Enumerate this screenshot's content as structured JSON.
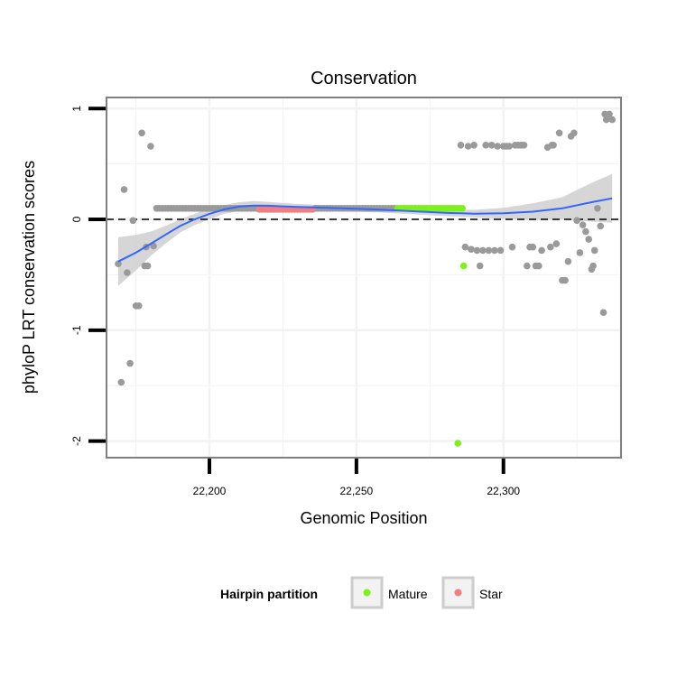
{
  "chart_data": {
    "type": "scatter",
    "title": "Conservation",
    "xlabel": "Genomic Position",
    "ylabel": "phyloP LRT conservation scores",
    "xlim": [
      22165,
      22340
    ],
    "ylim": [
      -2.15,
      1.1
    ],
    "x_ticks": [
      22200,
      22250,
      22300
    ],
    "x_tick_labels": [
      "22,200",
      "22,250",
      "22,300"
    ],
    "y_ticks": [
      -2,
      -1,
      0,
      1
    ],
    "y_tick_labels": [
      "-2",
      "-1",
      "0",
      "1"
    ],
    "reference_line": {
      "y": 0,
      "style": "dashed"
    },
    "legend": {
      "title": "Hairpin partition",
      "position": "bottom",
      "entries": [
        {
          "label": "Mature",
          "color": "#7cf11b"
        },
        {
          "label": "Star",
          "color": "#f08080"
        }
      ]
    },
    "colors": {
      "other": "#9a9a9a",
      "mature": "#7cf11b",
      "star": "#f08080",
      "smooth": "#3366ff",
      "ribbon": "#cfcfcf",
      "panel_border": "#7f7f7f",
      "grid": "#f2f2f2"
    },
    "series": [
      {
        "name": "Other",
        "color": "#9a9a9a",
        "points": [
          [
            22169,
            -0.4
          ],
          [
            22170,
            -1.47
          ],
          [
            22171,
            0.27
          ],
          [
            22172,
            -0.48
          ],
          [
            22173,
            -1.3
          ],
          [
            22174,
            -0.01
          ],
          [
            22175,
            -0.78
          ],
          [
            22176,
            -0.78
          ],
          [
            22177,
            0.78
          ],
          [
            22178,
            -0.42
          ],
          [
            22178.5,
            -0.25
          ],
          [
            22179,
            -0.42
          ],
          [
            22180,
            0.66
          ],
          [
            22181,
            -0.24
          ],
          [
            22182,
            0.1
          ],
          [
            22183,
            0.1
          ],
          [
            22184,
            0.1
          ],
          [
            22185,
            0.1
          ],
          [
            22186,
            0.1
          ],
          [
            22187,
            0.1
          ],
          [
            22188,
            0.1
          ],
          [
            22189,
            0.1
          ],
          [
            22190,
            0.1
          ],
          [
            22191,
            0.1
          ],
          [
            22192,
            0.1
          ],
          [
            22193,
            0.1
          ],
          [
            22194,
            0.1
          ],
          [
            22195,
            0.1
          ],
          [
            22196,
            0.1
          ],
          [
            22197,
            0.1
          ],
          [
            22198,
            0.1
          ],
          [
            22199,
            0.1
          ],
          [
            22200,
            0.1
          ],
          [
            22201,
            0.1
          ],
          [
            22202,
            0.1
          ],
          [
            22203,
            0.1
          ],
          [
            22204,
            0.1
          ],
          [
            22205,
            0.1
          ],
          [
            22206,
            0.1
          ],
          [
            22207,
            0.1
          ],
          [
            22208,
            0.1
          ],
          [
            22209,
            0.1
          ],
          [
            22210,
            0.1
          ],
          [
            22211,
            0.1
          ],
          [
            22212,
            0.1
          ],
          [
            22213,
            0.1
          ],
          [
            22214,
            0.1
          ],
          [
            22215,
            0.1
          ],
          [
            22216,
            0.1
          ],
          [
            22236,
            0.1
          ],
          [
            22237,
            0.1
          ],
          [
            22238,
            0.1
          ],
          [
            22239,
            0.1
          ],
          [
            22240,
            0.1
          ],
          [
            22241,
            0.1
          ],
          [
            22242,
            0.1
          ],
          [
            22243,
            0.1
          ],
          [
            22244,
            0.1
          ],
          [
            22245,
            0.1
          ],
          [
            22246,
            0.1
          ],
          [
            22247,
            0.1
          ],
          [
            22248,
            0.1
          ],
          [
            22249,
            0.1
          ],
          [
            22250,
            0.1
          ],
          [
            22251,
            0.1
          ],
          [
            22252,
            0.1
          ],
          [
            22253,
            0.1
          ],
          [
            22254,
            0.1
          ],
          [
            22255,
            0.1
          ],
          [
            22256,
            0.1
          ],
          [
            22257,
            0.1
          ],
          [
            22258,
            0.1
          ],
          [
            22259,
            0.1
          ],
          [
            22260,
            0.1
          ],
          [
            22261,
            0.1
          ],
          [
            22262,
            0.1
          ],
          [
            22263,
            0.1
          ],
          [
            22285.5,
            0.67
          ],
          [
            22287,
            -0.25
          ],
          [
            22288,
            0.66
          ],
          [
            22289,
            -0.27
          ],
          [
            22290,
            0.67
          ],
          [
            22291,
            -0.28
          ],
          [
            22292,
            -0.42
          ],
          [
            22293,
            -0.28
          ],
          [
            22294,
            0.67
          ],
          [
            22295,
            -0.28
          ],
          [
            22296,
            0.67
          ],
          [
            22297,
            -0.28
          ],
          [
            22298,
            0.66
          ],
          [
            22299,
            -0.28
          ],
          [
            22300,
            0.66
          ],
          [
            22301,
            0.66
          ],
          [
            22302,
            0.66
          ],
          [
            22303,
            -0.25
          ],
          [
            22304,
            0.67
          ],
          [
            22305,
            0.67
          ],
          [
            22306,
            0.67
          ],
          [
            22307,
            0.67
          ],
          [
            22308,
            -0.42
          ],
          [
            22309,
            -0.25
          ],
          [
            22310,
            -0.25
          ],
          [
            22311,
            -0.42
          ],
          [
            22312,
            -0.42
          ],
          [
            22313,
            -0.28
          ],
          [
            22315,
            0.65
          ],
          [
            22316,
            -0.25
          ],
          [
            22316.5,
            0.67
          ],
          [
            22317,
            0.67
          ],
          [
            22318,
            -0.22
          ],
          [
            22319,
            0.78
          ],
          [
            22320,
            -0.55
          ],
          [
            22321,
            -0.55
          ],
          [
            22322,
            -0.38
          ],
          [
            22323,
            0.75
          ],
          [
            22324,
            0.78
          ],
          [
            22325,
            -0.01
          ],
          [
            22326,
            -0.3
          ],
          [
            22327,
            -0.05
          ],
          [
            22328,
            -0.11
          ],
          [
            22329,
            -0.18
          ],
          [
            22330,
            -0.45
          ],
          [
            22330.5,
            -0.42
          ],
          [
            22331,
            -0.28
          ],
          [
            22332,
            0.1
          ],
          [
            22333,
            -0.06
          ],
          [
            22334,
            -0.84
          ],
          [
            22334.5,
            0.95
          ],
          [
            22335,
            0.9
          ],
          [
            22336,
            0.95
          ],
          [
            22337,
            0.9
          ]
        ]
      },
      {
        "name": "Star",
        "color": "#f08080",
        "points": [
          [
            22217,
            0.09
          ],
          [
            22218,
            0.09
          ],
          [
            22219,
            0.09
          ],
          [
            22220,
            0.09
          ],
          [
            22221,
            0.09
          ],
          [
            22222,
            0.09
          ],
          [
            22223,
            0.09
          ],
          [
            22224,
            0.09
          ],
          [
            22225,
            0.09
          ],
          [
            22226,
            0.09
          ],
          [
            22227,
            0.09
          ],
          [
            22228,
            0.09
          ],
          [
            22229,
            0.09
          ],
          [
            22230,
            0.09
          ],
          [
            22231,
            0.09
          ],
          [
            22232,
            0.09
          ],
          [
            22233,
            0.09
          ],
          [
            22234,
            0.09
          ],
          [
            22235,
            0.09
          ]
        ]
      },
      {
        "name": "Mature",
        "color": "#7cf11b",
        "points": [
          [
            22264,
            0.1
          ],
          [
            22265,
            0.1
          ],
          [
            22266,
            0.1
          ],
          [
            22267,
            0.1
          ],
          [
            22268,
            0.1
          ],
          [
            22269,
            0.1
          ],
          [
            22270,
            0.1
          ],
          [
            22271,
            0.1
          ],
          [
            22272,
            0.1
          ],
          [
            22273,
            0.1
          ],
          [
            22274,
            0.1
          ],
          [
            22275,
            0.1
          ],
          [
            22276,
            0.1
          ],
          [
            22277,
            0.1
          ],
          [
            22278,
            0.1
          ],
          [
            22279,
            0.1
          ],
          [
            22280,
            0.1
          ],
          [
            22281,
            0.1
          ],
          [
            22282,
            0.1
          ],
          [
            22283,
            0.1
          ],
          [
            22284,
            0.1
          ],
          [
            22285,
            0.1
          ],
          [
            22286,
            0.1
          ],
          [
            22284.5,
            -2.02
          ],
          [
            22286.5,
            -0.42
          ]
        ]
      }
    ],
    "smooth": {
      "x": [
        22169,
        22175,
        22180,
        22185,
        22190,
        22195,
        22200,
        22205,
        22210,
        22215,
        22220,
        22225,
        22230,
        22240,
        22250,
        22260,
        22270,
        22280,
        22290,
        22300,
        22310,
        22320,
        22330,
        22337
      ],
      "y": [
        -0.38,
        -0.3,
        -0.22,
        -0.14,
        -0.06,
        0.0,
        0.05,
        0.09,
        0.115,
        0.125,
        0.123,
        0.118,
        0.113,
        0.104,
        0.096,
        0.086,
        0.073,
        0.06,
        0.052,
        0.055,
        0.07,
        0.1,
        0.155,
        0.19
      ],
      "ymin": [
        -0.6,
        -0.46,
        -0.33,
        -0.22,
        -0.12,
        -0.05,
        0.0,
        0.05,
        0.075,
        0.085,
        0.088,
        0.088,
        0.086,
        0.08,
        0.072,
        0.06,
        0.045,
        0.03,
        0.018,
        0.005,
        -0.005,
        0.0,
        -0.02,
        -0.03
      ],
      "ymax": [
        -0.16,
        -0.14,
        -0.11,
        -0.06,
        0.0,
        0.05,
        0.1,
        0.13,
        0.155,
        0.165,
        0.158,
        0.148,
        0.14,
        0.128,
        0.12,
        0.112,
        0.1,
        0.09,
        0.086,
        0.105,
        0.145,
        0.2,
        0.33,
        0.41
      ]
    }
  }
}
